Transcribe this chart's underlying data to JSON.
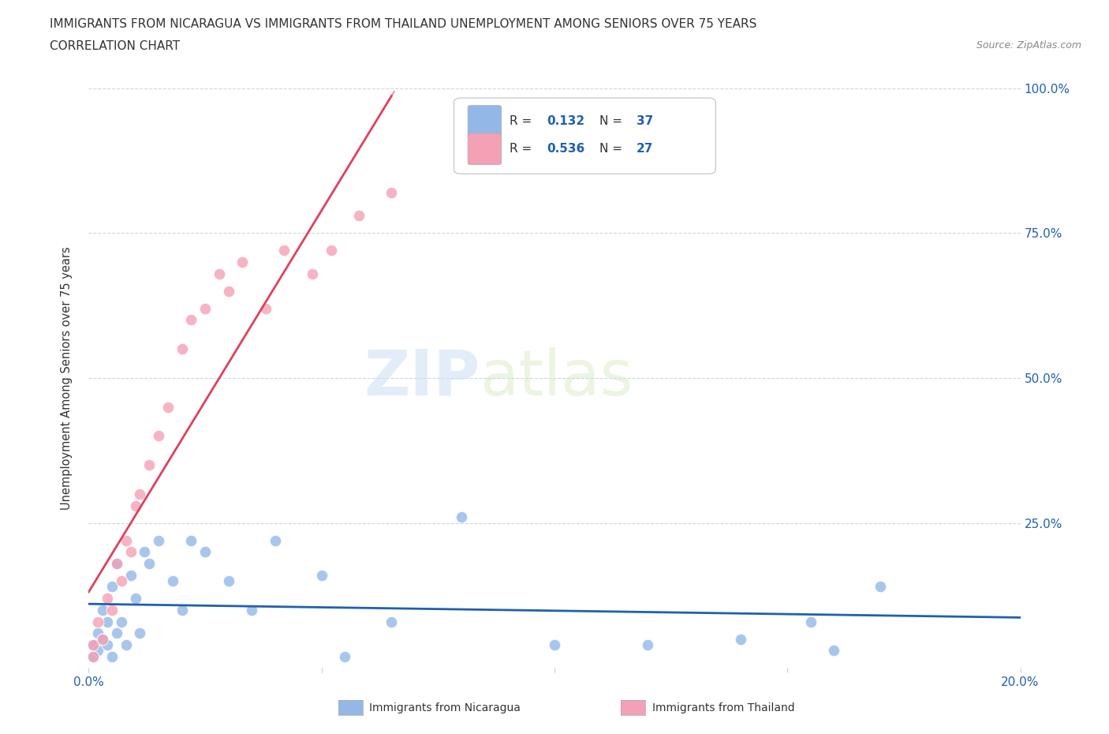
{
  "title_line1": "IMMIGRANTS FROM NICARAGUA VS IMMIGRANTS FROM THAILAND UNEMPLOYMENT AMONG SENIORS OVER 75 YEARS",
  "title_line2": "CORRELATION CHART",
  "source": "Source: ZipAtlas.com",
  "ylabel": "Unemployment Among Seniors over 75 years",
  "xlim": [
    0.0,
    0.2
  ],
  "ylim": [
    0.0,
    1.0
  ],
  "xticks": [
    0.0,
    0.05,
    0.1,
    0.15,
    0.2
  ],
  "xticklabels": [
    "0.0%",
    "",
    "",
    "",
    "20.0%"
  ],
  "yticks": [
    0.0,
    0.25,
    0.5,
    0.75,
    1.0
  ],
  "yticklabels": [
    "",
    "25.0%",
    "50.0%",
    "75.0%",
    "100.0%"
  ],
  "color_nicaragua": "#93b8e8",
  "color_thailand": "#f4a0b5",
  "line_color_nicaragua": "#2060b0",
  "line_color_thailand": "#e0405a",
  "legend_R_nicaragua": "0.132",
  "legend_N_nicaragua": "37",
  "legend_R_thailand": "0.536",
  "legend_N_thailand": "27",
  "legend_label_nicaragua": "Immigrants from Nicaragua",
  "legend_label_thailand": "Immigrants from Thailand",
  "watermark_zip": "ZIP",
  "watermark_atlas": "atlas",
  "nicaragua_x": [
    0.001,
    0.001,
    0.002,
    0.002,
    0.003,
    0.003,
    0.004,
    0.004,
    0.005,
    0.005,
    0.006,
    0.006,
    0.007,
    0.008,
    0.009,
    0.01,
    0.011,
    0.012,
    0.013,
    0.015,
    0.018,
    0.02,
    0.022,
    0.025,
    0.03,
    0.035,
    0.04,
    0.05,
    0.055,
    0.065,
    0.08,
    0.1,
    0.12,
    0.14,
    0.155,
    0.16,
    0.17
  ],
  "nicaragua_y": [
    0.02,
    0.04,
    0.03,
    0.06,
    0.05,
    0.1,
    0.04,
    0.08,
    0.02,
    0.14,
    0.06,
    0.18,
    0.08,
    0.04,
    0.16,
    0.12,
    0.06,
    0.2,
    0.18,
    0.22,
    0.15,
    0.1,
    0.22,
    0.2,
    0.15,
    0.1,
    0.22,
    0.16,
    0.02,
    0.08,
    0.26,
    0.04,
    0.04,
    0.05,
    0.08,
    0.03,
    0.14
  ],
  "thailand_x": [
    0.001,
    0.001,
    0.002,
    0.003,
    0.004,
    0.005,
    0.006,
    0.007,
    0.008,
    0.009,
    0.01,
    0.011,
    0.013,
    0.015,
    0.017,
    0.02,
    0.022,
    0.025,
    0.028,
    0.03,
    0.033,
    0.038,
    0.042,
    0.048,
    0.052,
    0.058,
    0.065
  ],
  "thailand_y": [
    0.02,
    0.04,
    0.08,
    0.05,
    0.12,
    0.1,
    0.18,
    0.15,
    0.22,
    0.2,
    0.28,
    0.3,
    0.35,
    0.4,
    0.45,
    0.55,
    0.6,
    0.62,
    0.68,
    0.65,
    0.7,
    0.62,
    0.72,
    0.68,
    0.72,
    0.78,
    0.82
  ],
  "thai_line_x_start": 0.0,
  "thai_line_x_solid_end": 0.065,
  "thai_line_x_dash_end": 0.085,
  "nic_line_x_start": 0.0,
  "nic_line_x_end": 0.2
}
